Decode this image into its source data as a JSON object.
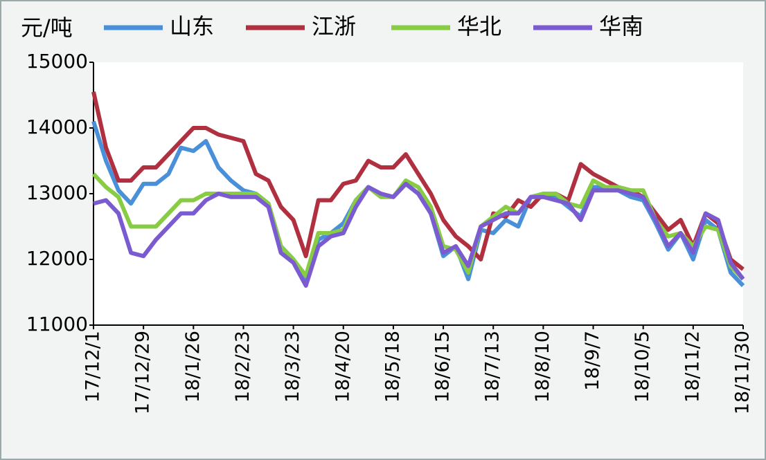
{
  "chart_data": {
    "type": "line",
    "y_label": "元/吨",
    "categories": [
      "17/12/1",
      null,
      null,
      null,
      "17/12/29",
      null,
      null,
      null,
      "18/1/26",
      null,
      null,
      null,
      "18/2/23",
      null,
      null,
      null,
      "18/3/23",
      null,
      null,
      null,
      "18/4/20",
      null,
      null,
      null,
      "18/5/18",
      null,
      null,
      null,
      "18/6/15",
      null,
      null,
      null,
      "18/7/13",
      null,
      null,
      null,
      "18/8/10",
      null,
      null,
      null,
      "18/9/7",
      null,
      null,
      null,
      "18/10/5",
      null,
      null,
      null,
      "18/11/2",
      null,
      null,
      null,
      "18/11/30"
    ],
    "series": [
      {
        "name": "山东",
        "color": "#4a90d9",
        "values": [
          14100,
          13500,
          13050,
          12850,
          13150,
          13150,
          13300,
          13700,
          13650,
          13800,
          13400,
          13200,
          13050,
          13000,
          12850,
          12200,
          12000,
          11700,
          12300,
          12400,
          12550,
          12900,
          13100,
          13000,
          12950,
          13150,
          13000,
          12700,
          12050,
          12200,
          11700,
          12450,
          12400,
          12600,
          12500,
          12950,
          12950,
          12950,
          12800,
          12650,
          13100,
          13100,
          13050,
          12950,
          12900,
          12550,
          12150,
          12400,
          12000,
          12600,
          12450,
          11800,
          11600
        ]
      },
      {
        "name": "江浙",
        "color": "#b03040",
        "values": [
          14550,
          13700,
          13200,
          13200,
          13400,
          13400,
          13600,
          13800,
          14000,
          14000,
          13900,
          13850,
          13800,
          13300,
          13200,
          12800,
          12600,
          12050,
          12900,
          12900,
          13150,
          13200,
          13500,
          13400,
          13400,
          13600,
          13300,
          13000,
          12600,
          12350,
          12200,
          12000,
          12700,
          12650,
          12900,
          12800,
          13000,
          13000,
          12900,
          13450,
          13300,
          13200,
          13100,
          13050,
          12950,
          12700,
          12450,
          12600,
          12200,
          12700,
          12550,
          12000,
          11850
        ]
      },
      {
        "name": "华北",
        "color": "#88cc44",
        "values": [
          13300,
          13100,
          12950,
          12500,
          12500,
          12500,
          12700,
          12900,
          12900,
          13000,
          13000,
          13000,
          13000,
          13000,
          12850,
          12200,
          12000,
          11750,
          12400,
          12400,
          12450,
          12900,
          13100,
          12950,
          12950,
          13200,
          13100,
          12800,
          12200,
          12150,
          11800,
          12500,
          12650,
          12800,
          12700,
          12950,
          13000,
          13000,
          12850,
          12800,
          13200,
          13100,
          13100,
          13050,
          13050,
          12600,
          12350,
          12400,
          12200,
          12500,
          12450,
          11900,
          11700
        ]
      },
      {
        "name": "华南",
        "color": "#7a5cd0",
        "values": [
          12850,
          12900,
          12700,
          12100,
          12050,
          12300,
          12500,
          12700,
          12700,
          12900,
          13000,
          12950,
          12950,
          12950,
          12800,
          12100,
          11950,
          11600,
          12200,
          12350,
          12400,
          12800,
          13100,
          13000,
          12950,
          13150,
          13000,
          12700,
          12100,
          12200,
          11900,
          12500,
          12600,
          12700,
          12700,
          12950,
          12950,
          12900,
          12850,
          12600,
          13050,
          13050,
          13050,
          13000,
          12950,
          12600,
          12200,
          12400,
          12100,
          12700,
          12600,
          11950,
          11700
        ]
      }
    ],
    "ylim": [
      11000,
      15000
    ],
    "yticks": [
      11000,
      12000,
      13000,
      14000,
      15000
    ]
  }
}
